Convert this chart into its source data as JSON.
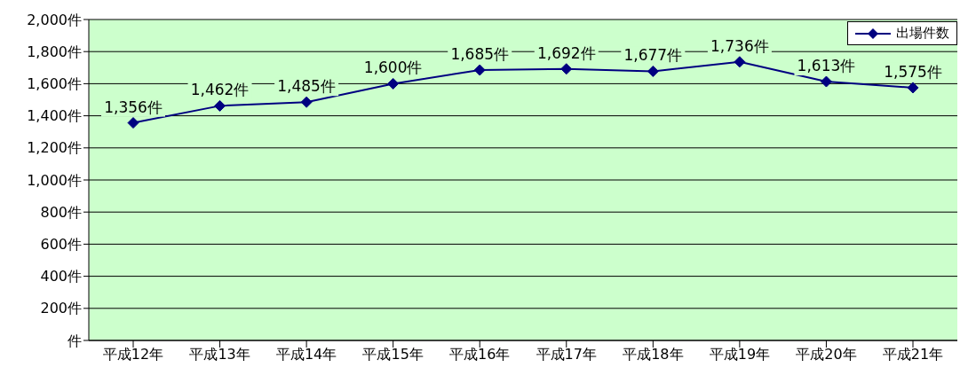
{
  "chart_data": {
    "type": "line",
    "categories": [
      "平成12年",
      "平成13年",
      "平成14年",
      "平成15年",
      "平成16年",
      "平成17年",
      "平成18年",
      "平成19年",
      "平成20年",
      "平成21年"
    ],
    "series": [
      {
        "name": "出場件数",
        "color": "#000080",
        "values": [
          1356,
          1462,
          1485,
          1600,
          1685,
          1692,
          1677,
          1736,
          1613,
          1575
        ],
        "value_labels": [
          "1,356件",
          "1,462件",
          "1,485件",
          "1,600件",
          "1,685件",
          "1,692件",
          "1,677件",
          "1,736件",
          "1,613件",
          "1,575件"
        ]
      }
    ],
    "ylim": [
      0,
      2000
    ],
    "yticks": [
      {
        "value": 0,
        "label": "件"
      },
      {
        "value": 200,
        "label": "200件"
      },
      {
        "value": 400,
        "label": "400件"
      },
      {
        "value": 600,
        "label": "600件"
      },
      {
        "value": 800,
        "label": "800件"
      },
      {
        "value": 1000,
        "label": "1,000件"
      },
      {
        "value": 1200,
        "label": "1,200件"
      },
      {
        "value": 1400,
        "label": "1,400件"
      },
      {
        "value": 1600,
        "label": "1,600件"
      },
      {
        "value": 1800,
        "label": "1,800件"
      },
      {
        "value": 2000,
        "label": "2,000件"
      }
    ],
    "grid": "y",
    "legend": "top right",
    "marker": "diamond",
    "line_style": "solid"
  }
}
